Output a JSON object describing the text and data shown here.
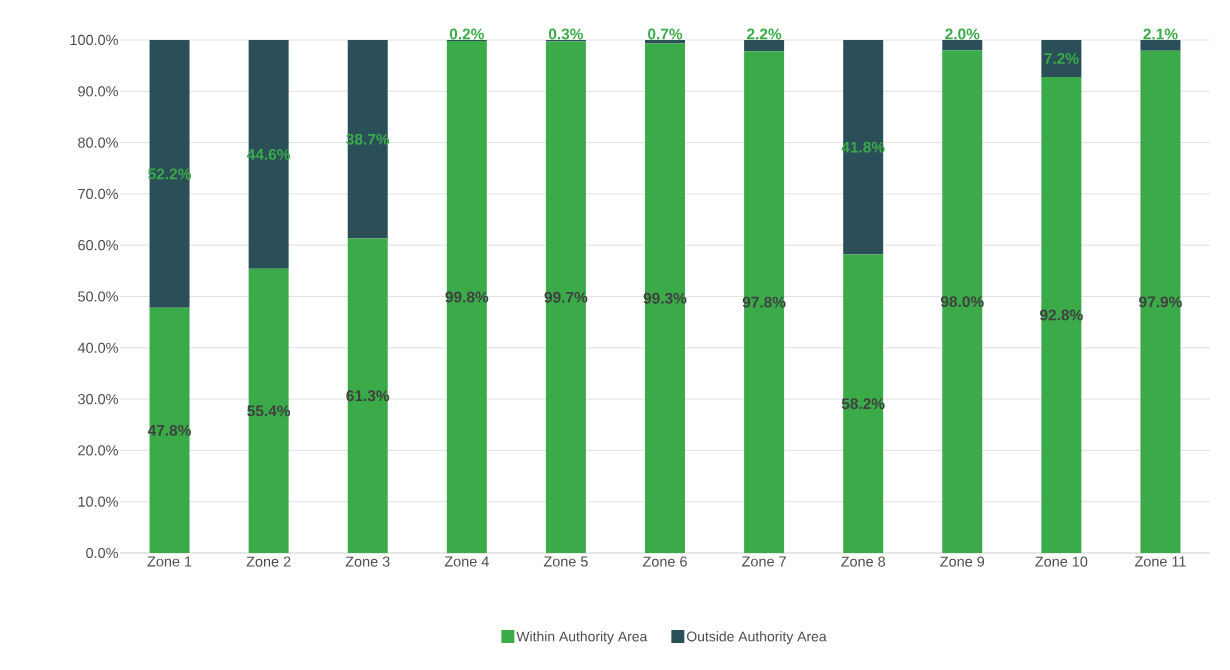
{
  "chart_data": {
    "type": "bar",
    "stacked": true,
    "categories": [
      "Zone 1",
      "Zone 2",
      "Zone 3",
      "Zone 4",
      "Zone 5",
      "Zone 6",
      "Zone 7",
      "Zone 8",
      "Zone 9",
      "Zone 10",
      "Zone 11"
    ],
    "series": [
      {
        "name": "Within Authority Area",
        "color": "#3bab4a",
        "values": [
          47.8,
          55.4,
          61.3,
          99.8,
          99.7,
          99.3,
          97.8,
          58.2,
          98.0,
          92.8,
          97.9
        ],
        "value_labels": [
          "47.8%",
          "55.4%",
          "61.3%",
          "99.8%",
          "99.7%",
          "99.3%",
          "97.8%",
          "58.2%",
          "98.0%",
          "92.8%",
          "97.9%"
        ]
      },
      {
        "name": "Outside Authority Area",
        "color": "#2b4f59",
        "values": [
          52.2,
          44.6,
          38.7,
          0.2,
          0.3,
          0.7,
          2.2,
          41.8,
          2.0,
          7.2,
          2.1
        ],
        "value_labels": [
          "52.2%",
          "44.6%",
          "38.7%",
          "0.2%",
          "0.3%",
          "0.7%",
          "2.2%",
          "41.8%",
          "2.0%",
          "7.2%",
          "2.1%"
        ]
      }
    ],
    "ylim": [
      0,
      100
    ],
    "yticks": [
      {
        "value": 0,
        "label": "0.0%"
      },
      {
        "value": 10,
        "label": "10.0%"
      },
      {
        "value": 20,
        "label": "20.0%"
      },
      {
        "value": 30,
        "label": "30.0%"
      },
      {
        "value": 40,
        "label": "40.0%"
      },
      {
        "value": 50,
        "label": "50.0%"
      },
      {
        "value": 60,
        "label": "60.0%"
      },
      {
        "value": 70,
        "label": "70.0%"
      },
      {
        "value": 80,
        "label": "80.0%"
      },
      {
        "value": 90,
        "label": "90.0%"
      },
      {
        "value": 100,
        "label": "100.0%"
      }
    ],
    "grid": "y",
    "legend": "bottom"
  }
}
